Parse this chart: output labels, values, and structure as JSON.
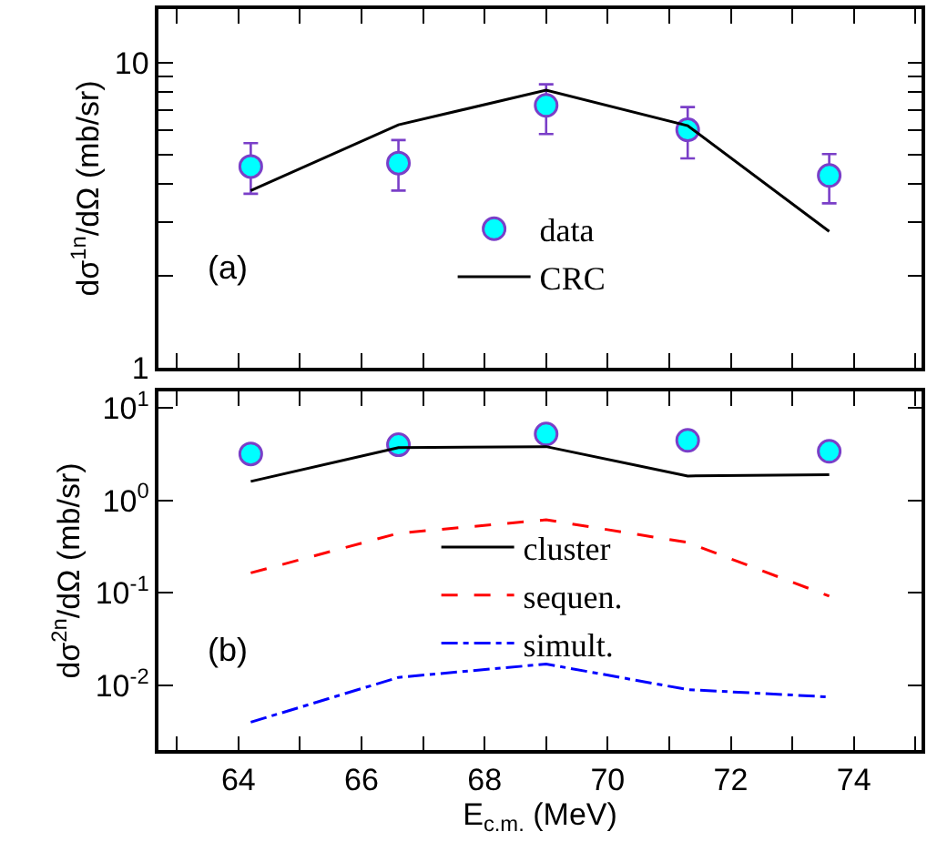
{
  "chart_data": [
    {
      "type": "line",
      "ylabel": "dσ$^{1n}$/dΩ (mb/sr)",
      "annotations": [
        "(a)"
      ],
      "log": "y",
      "legend": "bottom",
      "tick_labels": "y",
      "xlim": [
        62.7,
        75.1
      ],
      "xticks": [
        {
          "value": 63,
          "label": null
        },
        {
          "value": 64,
          "label": null
        },
        {
          "value": 65,
          "label": null
        },
        {
          "value": 66,
          "label": null
        },
        {
          "value": 67,
          "label": null
        },
        {
          "value": 68,
          "label": null
        },
        {
          "value": 69,
          "label": null
        },
        {
          "value": 70,
          "label": null
        },
        {
          "value": 71,
          "label": null
        },
        {
          "value": 72,
          "label": null
        },
        {
          "value": 73,
          "label": null
        },
        {
          "value": 74,
          "label": null
        },
        {
          "value": 75,
          "label": null
        }
      ],
      "ylim": [
        1,
        15
      ],
      "yticks": [
        1,
        {
          "value": 2,
          "label": null
        },
        {
          "value": 3,
          "label": null
        },
        {
          "value": 4,
          "label": null
        },
        {
          "value": 5,
          "label": null
        },
        {
          "value": 6,
          "label": null
        },
        {
          "value": 7,
          "label": null
        },
        {
          "value": 8,
          "label": null
        },
        {
          "value": 9,
          "label": null
        },
        10
      ],
      "x": [
        64.2,
        66.6,
        69.0,
        71.3,
        73.6
      ],
      "series": [
        {
          "name": "data",
          "type": "scatter",
          "marker": "circle",
          "color": "#00ffff",
          "values": [
            4.57,
            4.69,
            7.25,
            6.03,
            4.27
          ],
          "errors": [
            [
              3.72,
              5.45
            ],
            [
              3.81,
              5.58
            ],
            [
              5.84,
              8.5
            ],
            [
              4.86,
              7.16
            ],
            [
              3.46,
              5.02
            ]
          ]
        },
        {
          "name": "CRC",
          "color": "#000000",
          "line_style": "solid",
          "values": [
            3.81,
            6.26,
            8.13,
            6.22,
            2.8
          ]
        }
      ]
    },
    {
      "type": "line",
      "ylabel": "dσ$^{2n}$/dΩ (mb/sr)",
      "xlabel": "E$_{c.m.}$ (MeV)",
      "annotations": [
        "(b)"
      ],
      "log": "y",
      "legend": "center",
      "xlim": [
        62.7,
        75.1
      ],
      "xticks": [
        {
          "value": 63,
          "label": null
        },
        64,
        {
          "value": 65,
          "label": null
        },
        66,
        {
          "value": 67,
          "label": null
        },
        68,
        {
          "value": 69,
          "label": null
        },
        70,
        {
          "value": 71,
          "label": null
        },
        72,
        {
          "value": 73,
          "label": null
        },
        74,
        {
          "value": 75,
          "label": null
        }
      ],
      "ylim": [
        0.002,
        15
      ],
      "yticks": [
        {
          "value": 0.01,
          "label": "10$^{-2}$"
        },
        {
          "value": 0.1,
          "label": "10$^{-1}$"
        },
        {
          "value": 1,
          "label": "10$^{0}$"
        },
        {
          "value": 10,
          "label": "10$^{1}$"
        }
      ],
      "x": [
        64.2,
        66.6,
        69.0,
        71.3,
        73.6
      ],
      "series": [
        {
          "type": "scatter",
          "marker": "circle",
          "color": "#00ffff",
          "values": [
            3.17,
            3.98,
            5.2,
            4.44,
            3.38
          ]
        },
        {
          "name": "cluster",
          "color": "#000000",
          "line_style": "solid",
          "values": [
            1.6,
            3.7,
            3.8,
            1.83,
            1.89
          ]
        },
        {
          "name": "sequen.",
          "color": "#ff0000",
          "line_style": "dashed",
          "values": [
            0.164,
            0.44,
            0.615,
            0.35,
            0.092
          ]
        },
        {
          "name": "simult.",
          "color": "#0000ff",
          "line_style": "dashdot",
          "values": [
            0.004,
            0.0122,
            0.017,
            0.009,
            0.0075
          ]
        }
      ]
    }
  ]
}
